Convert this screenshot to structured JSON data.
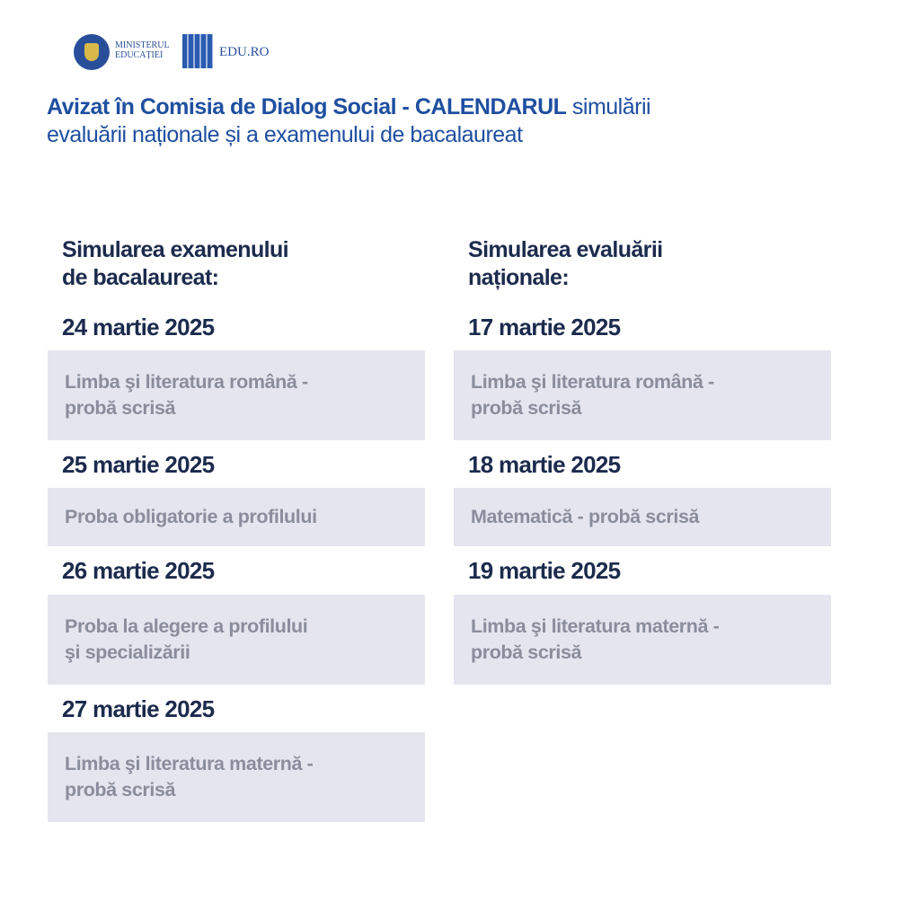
{
  "header": {
    "ministry_logo_text": "MINISTERUL EDUCAȚIEI",
    "ministry_line1": "MINISTERUL",
    "ministry_line2": "EDUCAȚIEI",
    "eduro_label": "EDU.RO",
    "title_bold": "Avizat în Comisia de Dialog Social - CALENDARUL",
    "title_regular_1": " simulării",
    "title_regular_2": "evaluării naționale și a examenului de bacalaureat"
  },
  "columns": [
    {
      "heading": [
        "Simularea examenului",
        "de bacalaureat:"
      ],
      "entries": [
        {
          "date": "24 martie 2025",
          "lines": [
            "Limba şi literatura română -",
            "probă scrisă"
          ]
        },
        {
          "date": "25 martie 2025",
          "lines": [
            "Proba obligatorie a profilului"
          ]
        },
        {
          "date": "26 martie 2025",
          "lines": [
            "Proba la alegere a profilului",
            "şi specializării"
          ]
        },
        {
          "date": "27 martie 2025",
          "lines": [
            "Limba şi literatura maternă -",
            "probă scrisă"
          ]
        }
      ]
    },
    {
      "heading": [
        "Simularea evaluării",
        "naționale:"
      ],
      "entries": [
        {
          "date": "17 martie 2025",
          "lines": [
            "Limba şi literatura română -",
            "probă scrisă"
          ]
        },
        {
          "date": "18 martie 2025",
          "lines": [
            "Matematică - probă scrisă"
          ]
        },
        {
          "date": "19 martie 2025",
          "lines": [
            "Limba şi literatura maternă -",
            "probă scrisă"
          ]
        }
      ]
    }
  ],
  "colors": {
    "title": "#1f4fa0",
    "heading": "#1c2b4d",
    "box_bg": "#e4e5ee",
    "box_text": "#8a8d9c"
  }
}
